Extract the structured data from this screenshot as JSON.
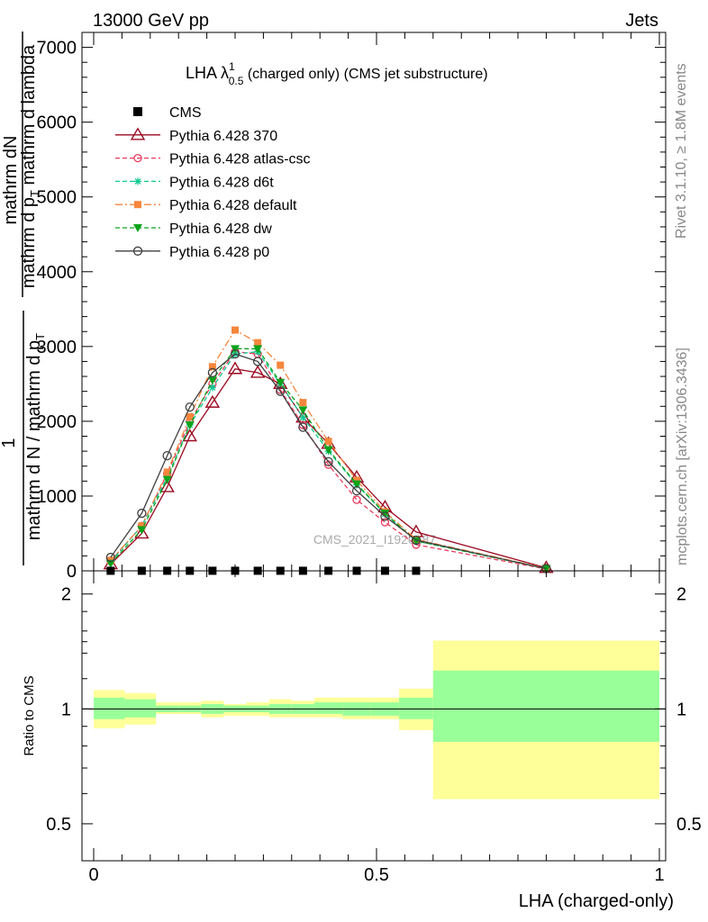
{
  "header": {
    "energy_label": "13000 GeV pp",
    "process_label": "Jets"
  },
  "side": {
    "rivet_label": "Rivet 3.1.10, ≥ 1.8M events",
    "mcplots_label": "mcplots.cern.ch [arXiv:1306.3436]"
  },
  "watermark": "CMS_2021_I1920187",
  "colors": {
    "cms": "#000000",
    "p370": "#9b0a22",
    "atlas": "#ee3b5e",
    "d6t": "#10c991",
    "default": "#f5863c",
    "dw": "#0aa31b",
    "p0": "#404040",
    "band_outer": "#ffff99",
    "band_inner": "#99ff99"
  },
  "chart_data": [
    {
      "type": "line",
      "title_main": "LHA λ",
      "title_sup": "1",
      "title_sub": "0.5",
      "title_rest": " (charged only) (CMS jet substructure)",
      "ylabel_top": "mathrm dN",
      "ylabel_top2": "mathrm d p",
      "ylabel_top2_sub": "T",
      "ylabel_top3": " mathrm d lambda",
      "ylabel_one": "1",
      "ylabel_bottom": "mathrm d N / mathrm d p",
      "ylabel_bottom_sub": "T",
      "ylim": [
        0,
        7200
      ],
      "xlim": [
        -0.02,
        1.0
      ],
      "yticks": [
        0,
        1000,
        2000,
        3000,
        4000,
        5000,
        6000,
        7000
      ],
      "ytick_labels": [
        "0",
        "1000",
        "2000",
        "3000",
        "4000",
        "5000",
        "6000",
        "7000"
      ],
      "grid": false,
      "legend_position": "top-left",
      "cms_x": [
        0.03,
        0.085,
        0.13,
        0.17,
        0.21,
        0.25,
        0.29,
        0.33,
        0.37,
        0.415,
        0.465,
        0.515,
        0.57
      ],
      "cms_y": [
        1,
        1,
        1,
        1,
        1,
        1,
        1,
        1,
        1,
        1,
        1,
        1,
        1
      ],
      "x": [
        0.03,
        0.085,
        0.13,
        0.17,
        0.21,
        0.25,
        0.29,
        0.33,
        0.37,
        0.415,
        0.465,
        0.515,
        0.57,
        0.8
      ],
      "series": [
        {
          "name": "CMS",
          "key": "cms"
        },
        {
          "name": "Pythia 6.428 370",
          "key": "p370",
          "values": [
            90,
            500,
            1120,
            1800,
            2250,
            2700,
            2650,
            2500,
            2050,
            1700,
            1250,
            850,
            520,
            40
          ]
        },
        {
          "name": "Pythia 6.428 atlas-csc",
          "key": "atlas",
          "values": [
            130,
            600,
            1300,
            2000,
            2500,
            2930,
            2900,
            2420,
            1950,
            1420,
            950,
            650,
            350,
            25
          ]
        },
        {
          "name": "Pythia 6.428 d6t",
          "key": "d6t",
          "values": [
            120,
            600,
            1250,
            1950,
            2450,
            2900,
            2930,
            2500,
            2050,
            1600,
            1150,
            760,
            400,
            30
          ]
        },
        {
          "name": "Pythia 6.428 default",
          "key": "default",
          "values": [
            140,
            600,
            1320,
            2060,
            2730,
            3220,
            3050,
            2750,
            2250,
            1730,
            1210,
            790,
            420,
            35
          ]
        },
        {
          "name": "Pythia 6.428 dw",
          "key": "dw",
          "values": [
            100,
            550,
            1220,
            1950,
            2550,
            2970,
            2970,
            2520,
            2150,
            1620,
            1160,
            770,
            400,
            30
          ]
        },
        {
          "name": "Pythia 6.428 p0",
          "key": "p0",
          "values": [
            180,
            770,
            1540,
            2190,
            2650,
            2900,
            2800,
            2400,
            1920,
            1460,
            1070,
            730,
            410,
            30
          ]
        }
      ]
    },
    {
      "type": "area",
      "ylabel": "Ratio to CMS",
      "xlabel": "LHA (charged-only)",
      "ylim": [
        0.4,
        2.3
      ],
      "yscale": "log",
      "yticks": [
        0.5,
        1,
        2
      ],
      "ytick_labels": [
        "0.5",
        "1",
        "2"
      ],
      "xticks": [
        0,
        0.5,
        1
      ],
      "xtick_labels": [
        "0",
        "0.5",
        "1"
      ],
      "bins": [
        0,
        0.055,
        0.11,
        0.15,
        0.19,
        0.23,
        0.27,
        0.31,
        0.35,
        0.39,
        0.44,
        0.49,
        0.54,
        0.6,
        1.0
      ],
      "band_outer_lo": [
        0.89,
        0.91,
        0.97,
        0.97,
        0.95,
        0.96,
        0.96,
        0.95,
        0.95,
        0.95,
        0.94,
        0.94,
        0.88,
        0.58
      ],
      "band_outer_hi": [
        1.12,
        1.1,
        1.04,
        1.04,
        1.05,
        1.03,
        1.04,
        1.06,
        1.05,
        1.07,
        1.07,
        1.07,
        1.13,
        1.51
      ],
      "band_inner_lo": [
        0.94,
        0.95,
        0.98,
        0.98,
        0.97,
        0.98,
        0.98,
        0.97,
        0.97,
        0.97,
        0.96,
        0.96,
        0.94,
        0.82
      ],
      "band_inner_hi": [
        1.07,
        1.06,
        1.02,
        1.02,
        1.03,
        1.02,
        1.02,
        1.03,
        1.03,
        1.04,
        1.04,
        1.04,
        1.07,
        1.26
      ]
    }
  ]
}
